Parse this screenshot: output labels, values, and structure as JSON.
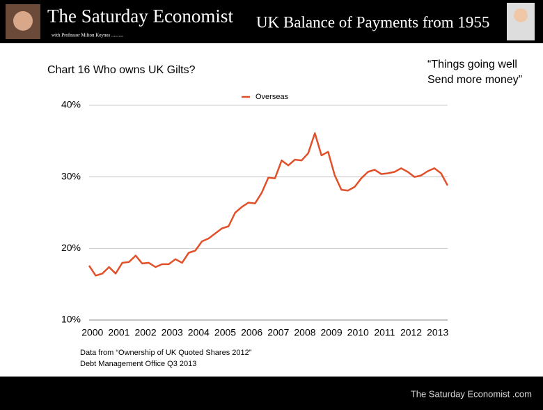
{
  "header": {
    "title": "The Saturday Economist",
    "subtitle": "with Professor Milton Keynes ..........",
    "topic": "UK Balance of Payments from 1955"
  },
  "quote": [
    "“Things going well",
    "Send more money”"
  ],
  "chart_data": {
    "type": "line",
    "title": "Chart 16 Who owns UK Gilts?",
    "categories": [
      "2000",
      null,
      null,
      null,
      "2001",
      null,
      null,
      null,
      "2002",
      null,
      null,
      null,
      "2003",
      null,
      null,
      null,
      "2004",
      null,
      null,
      null,
      "2005",
      null,
      null,
      null,
      "2006",
      null,
      null,
      null,
      "2007",
      null,
      null,
      null,
      "2008",
      null,
      null,
      null,
      "2009",
      null,
      null,
      null,
      "2010",
      null,
      null,
      null,
      "2011",
      null,
      null,
      null,
      "2012",
      null,
      null,
      null,
      "2013",
      null,
      null
    ],
    "series": [
      {
        "name": "Overseas",
        "color": "#e2502a",
        "values": [
          17.6,
          16.2,
          16.5,
          17.4,
          16.5,
          18.0,
          18.1,
          19.0,
          17.9,
          18.0,
          17.4,
          17.8,
          17.8,
          18.5,
          18.0,
          19.4,
          19.7,
          21.0,
          21.4,
          22.1,
          22.8,
          23.1,
          25.0,
          25.8,
          26.4,
          26.3,
          27.8,
          29.9,
          29.8,
          32.3,
          31.6,
          32.4,
          32.3,
          33.3,
          36.1,
          33.0,
          33.5,
          30.2,
          28.2,
          28.1,
          28.6,
          29.8,
          30.7,
          31.0,
          30.4,
          30.5,
          30.7,
          31.2,
          30.7,
          30.0,
          30.2,
          30.8,
          31.2,
          30.5,
          28.8
        ]
      }
    ],
    "ylim": [
      10,
      40
    ],
    "yticks": [
      {
        "value": 10,
        "label": "10%"
      },
      {
        "value": 20,
        "label": "20%"
      },
      {
        "value": 30,
        "label": "30%"
      },
      {
        "value": 40,
        "label": "40%"
      }
    ],
    "grid": true,
    "legend": "top"
  },
  "notes": [
    "Data from “Ownership of UK Quoted Shares 2012”",
    "Debt Management Office Q3 2013"
  ],
  "footer": "The Saturday Economist .com"
}
